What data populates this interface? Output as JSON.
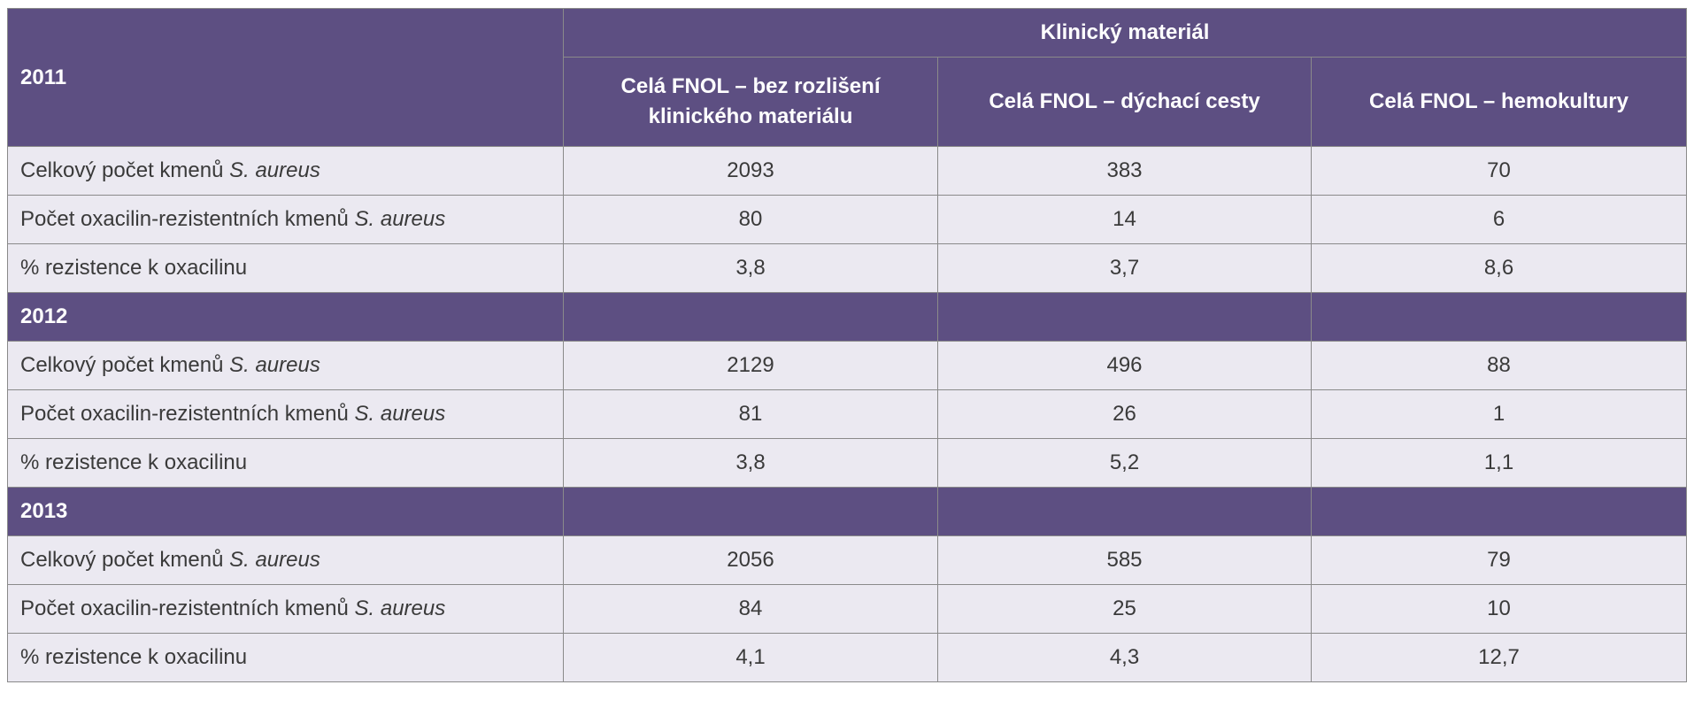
{
  "table": {
    "group_header": "Klinický materiál",
    "columns": [
      "Celá FNOL – bez rozlišení klinického materiálu",
      "Celá FNOL – dýchací cesty",
      "Celá FNOL – hemokultury"
    ],
    "columns_lines": [
      [
        "Celá FNOL – bez rozlišení",
        "klinického materiálu"
      ],
      [
        "Celá FNOL – dýchací cesty"
      ],
      [
        "Celá FNOL – hemokultury"
      ]
    ],
    "row_labels": {
      "total_prefix": "Celkový počet kmenů ",
      "resistant_prefix": "Počet oxacilin-rezistentních kmenů ",
      "species": "S. aureus",
      "percent": "% rezistence k oxacilinu"
    },
    "years": [
      {
        "year": "2011",
        "rows": [
          [
            "2093",
            "383",
            "70"
          ],
          [
            "80",
            "14",
            "6"
          ],
          [
            "3,8",
            "3,7",
            "8,6"
          ]
        ]
      },
      {
        "year": "2012",
        "rows": [
          [
            "2129",
            "496",
            "88"
          ],
          [
            "81",
            "26",
            "1"
          ],
          [
            "3,8",
            "5,2",
            "1,1"
          ]
        ]
      },
      {
        "year": "2013",
        "rows": [
          [
            "2056",
            "585",
            "79"
          ],
          [
            "84",
            "25",
            "10"
          ],
          [
            "4,1",
            "4,3",
            "12,7"
          ]
        ]
      }
    ]
  }
}
